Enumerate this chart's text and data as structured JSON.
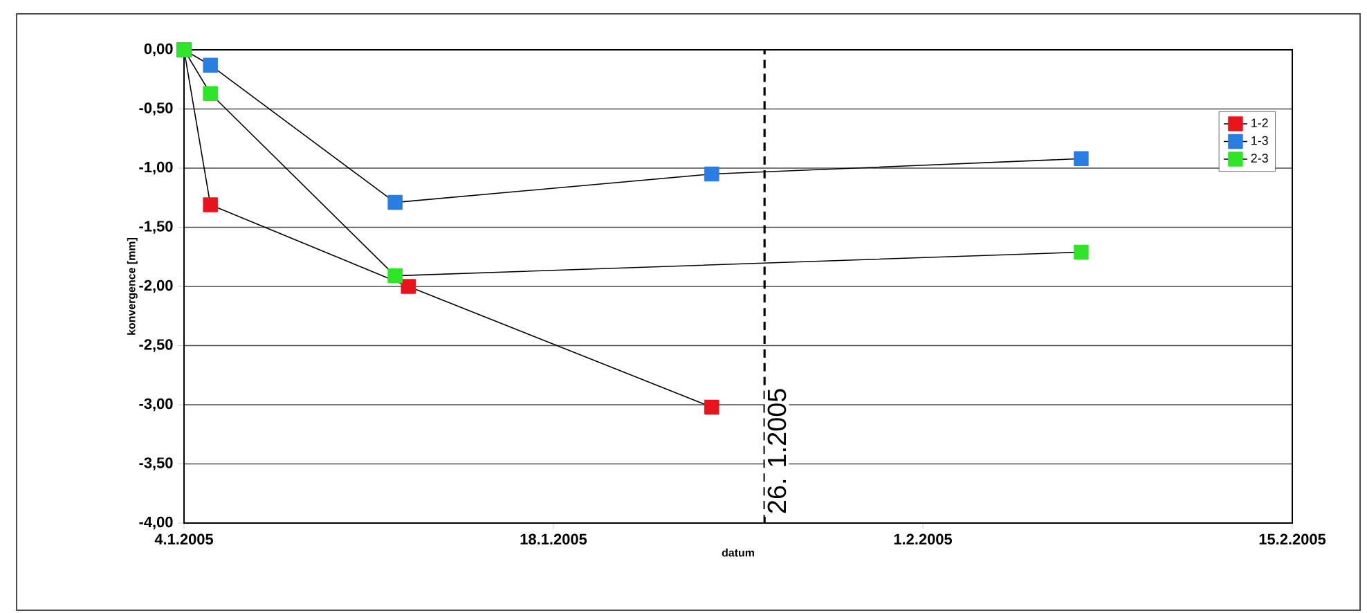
{
  "chart_data": {
    "type": "line",
    "xlabel": "datum",
    "ylabel": "konvergence [mm]",
    "xlim": [
      "2005-01-04",
      "2005-02-15"
    ],
    "xticks": [
      {
        "value": "2005-01-04",
        "label": "4.1.2005"
      },
      {
        "value": "2005-01-18",
        "label": "18.1.2005"
      },
      {
        "value": "2005-02-01",
        "label": "1.2.2005"
      },
      {
        "value": "2005-02-15",
        "label": "15.2.2005"
      }
    ],
    "ylim": [
      -4,
      0
    ],
    "yticks": [
      {
        "value": 0,
        "label": "0,00"
      },
      {
        "value": -0.5,
        "label": "-0,50"
      },
      {
        "value": -1,
        "label": "-1,00"
      },
      {
        "value": -1.5,
        "label": "-1,50"
      },
      {
        "value": -2,
        "label": "-2,00"
      },
      {
        "value": -2.5,
        "label": "-2,50"
      },
      {
        "value": -3,
        "label": "-3,00"
      },
      {
        "value": -3.5,
        "label": "-3,50"
      },
      {
        "value": -4,
        "label": "-4,00"
      }
    ],
    "grid": "y",
    "legend": "top right",
    "marker": "square",
    "line_style": "solid",
    "series": [
      {
        "name": "1-2",
        "color": "#e8141c",
        "x": [
          "2005-01-04",
          "2005-01-05",
          "2005-01-12T12:00",
          "2005-01-24"
        ],
        "values": [
          0,
          -1.31,
          -2.0,
          -3.02
        ]
      },
      {
        "name": "1-3",
        "color": "#2a7de1",
        "x": [
          "2005-01-04",
          "2005-01-05",
          "2005-01-12",
          "2005-01-24",
          "2005-02-07"
        ],
        "values": [
          0,
          -0.13,
          -1.29,
          -1.05,
          -0.92
        ]
      },
      {
        "name": "2-3",
        "color": "#2ee52a",
        "x": [
          "2005-01-04",
          "2005-01-05",
          "2005-01-12",
          "2005-02-07"
        ],
        "values": [
          0,
          -0.37,
          -1.91,
          -1.71
        ]
      }
    ],
    "ref_lines": [
      {
        "axis": "x",
        "value": "2005-01-26",
        "label": "26. 1.2005",
        "line_style": "dashed",
        "color": "#000000"
      }
    ]
  }
}
